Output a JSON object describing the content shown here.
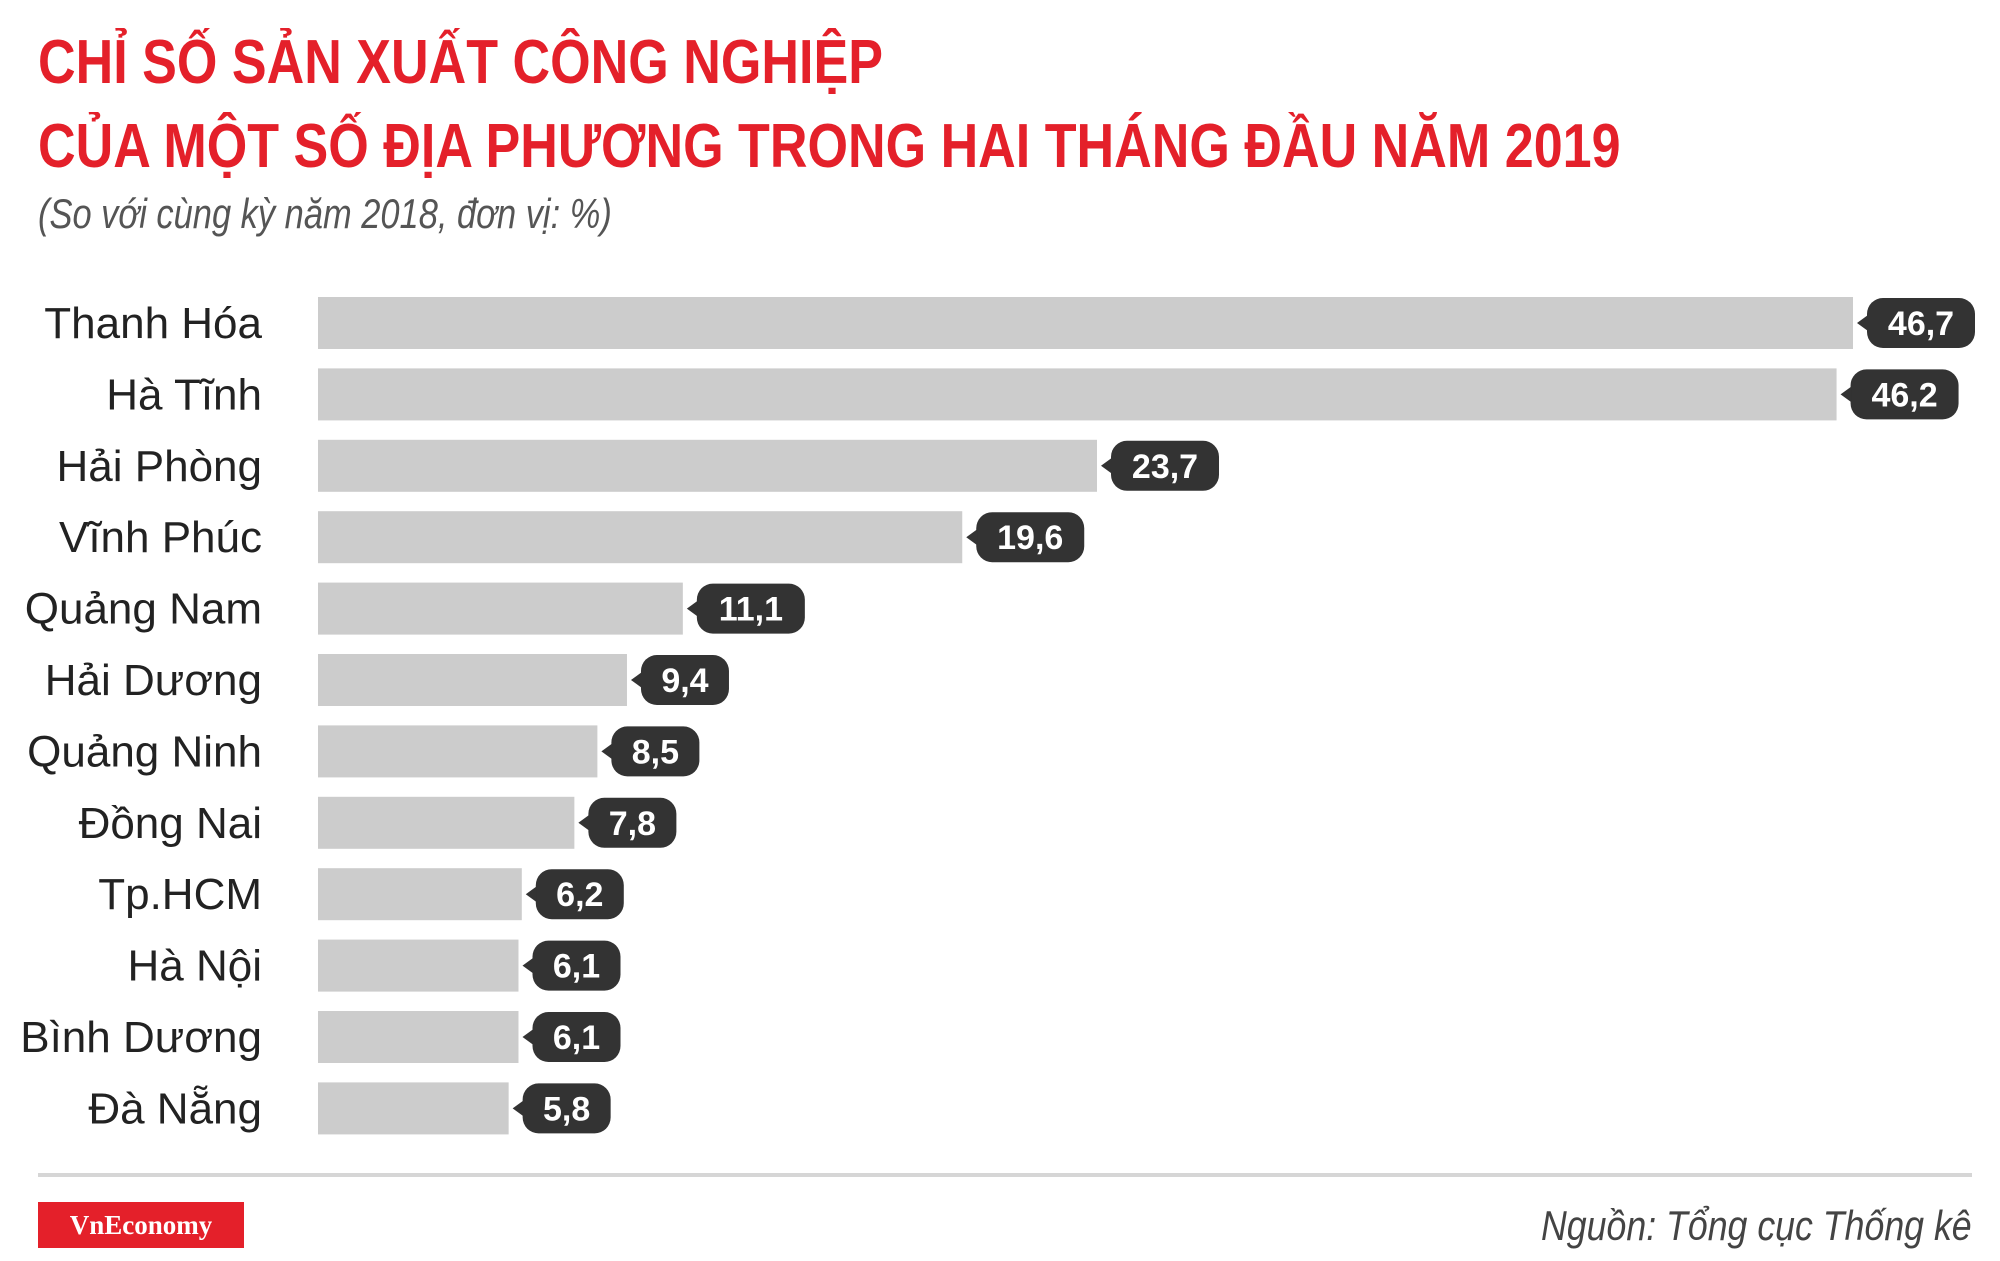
{
  "header": {
    "title_line1": "CHỈ SỐ SẢN XUẤT CÔNG NGHIỆP",
    "title_line2": "CỦA MỘT SỐ ĐỊA PHƯƠNG TRONG HAI THÁNG ĐẦU NĂM 2019",
    "subtitle": "(So với cùng kỳ năm 2018, đơn vị: %)"
  },
  "colors": {
    "title": "#e4202a",
    "bar": "#cccccc",
    "value_badge": "#333333",
    "value_text": "#ffffff",
    "logo_bg": "#e4202a"
  },
  "chart_data": {
    "type": "bar",
    "orientation": "horizontal",
    "title": "CHỈ SỐ SẢN XUẤT CÔNG NGHIỆP CỦA MỘT SỐ ĐỊA PHƯƠNG TRONG HAI THÁNG ĐẦU NĂM 2019",
    "subtitle": "(So với cùng kỳ năm 2018, đơn vị: %)",
    "categories": [
      "Thanh Hóa",
      "Hà Tĩnh",
      "Hải Phòng",
      "Vĩnh Phúc",
      "Quảng Nam",
      "Hải Dương",
      "Quảng Ninh",
      "Đồng Nai",
      "Tp.HCM",
      "Hà Nội",
      "Bình Dương",
      "Đà Nẵng"
    ],
    "values": [
      46.7,
      46.2,
      23.7,
      19.6,
      11.1,
      9.4,
      8.5,
      7.8,
      6.2,
      6.1,
      6.1,
      5.8
    ],
    "value_labels": [
      "46,7",
      "46,2",
      "23,7",
      "19,6",
      "11,1",
      "9,4",
      "8,5",
      "7,8",
      "6,2",
      "6,1",
      "6,1",
      "5,8"
    ],
    "xlim": [
      0,
      46.7
    ],
    "grid": false,
    "legend": "none"
  },
  "footer": {
    "logo_text": "VnEconomy",
    "source": "Nguồn: Tổng cục Thống kê"
  }
}
